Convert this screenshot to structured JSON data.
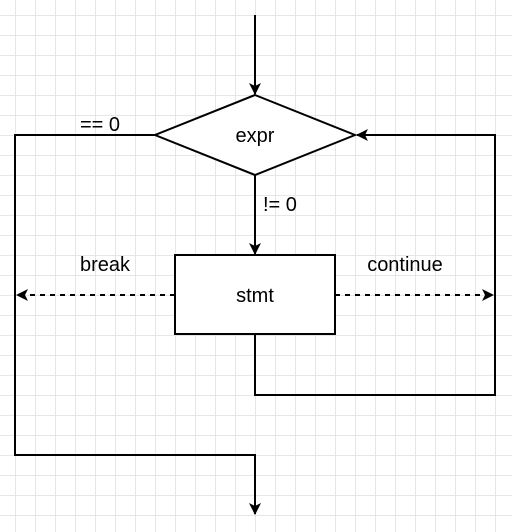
{
  "diagram": {
    "condition_node": "expr",
    "statement_node": "stmt",
    "edge_false": "== 0",
    "edge_true": "!= 0",
    "edge_break": "break",
    "edge_continue": "continue"
  },
  "colors": {
    "stroke": "#000000",
    "background": "#ffffff",
    "grid": "#e6e6e6"
  }
}
